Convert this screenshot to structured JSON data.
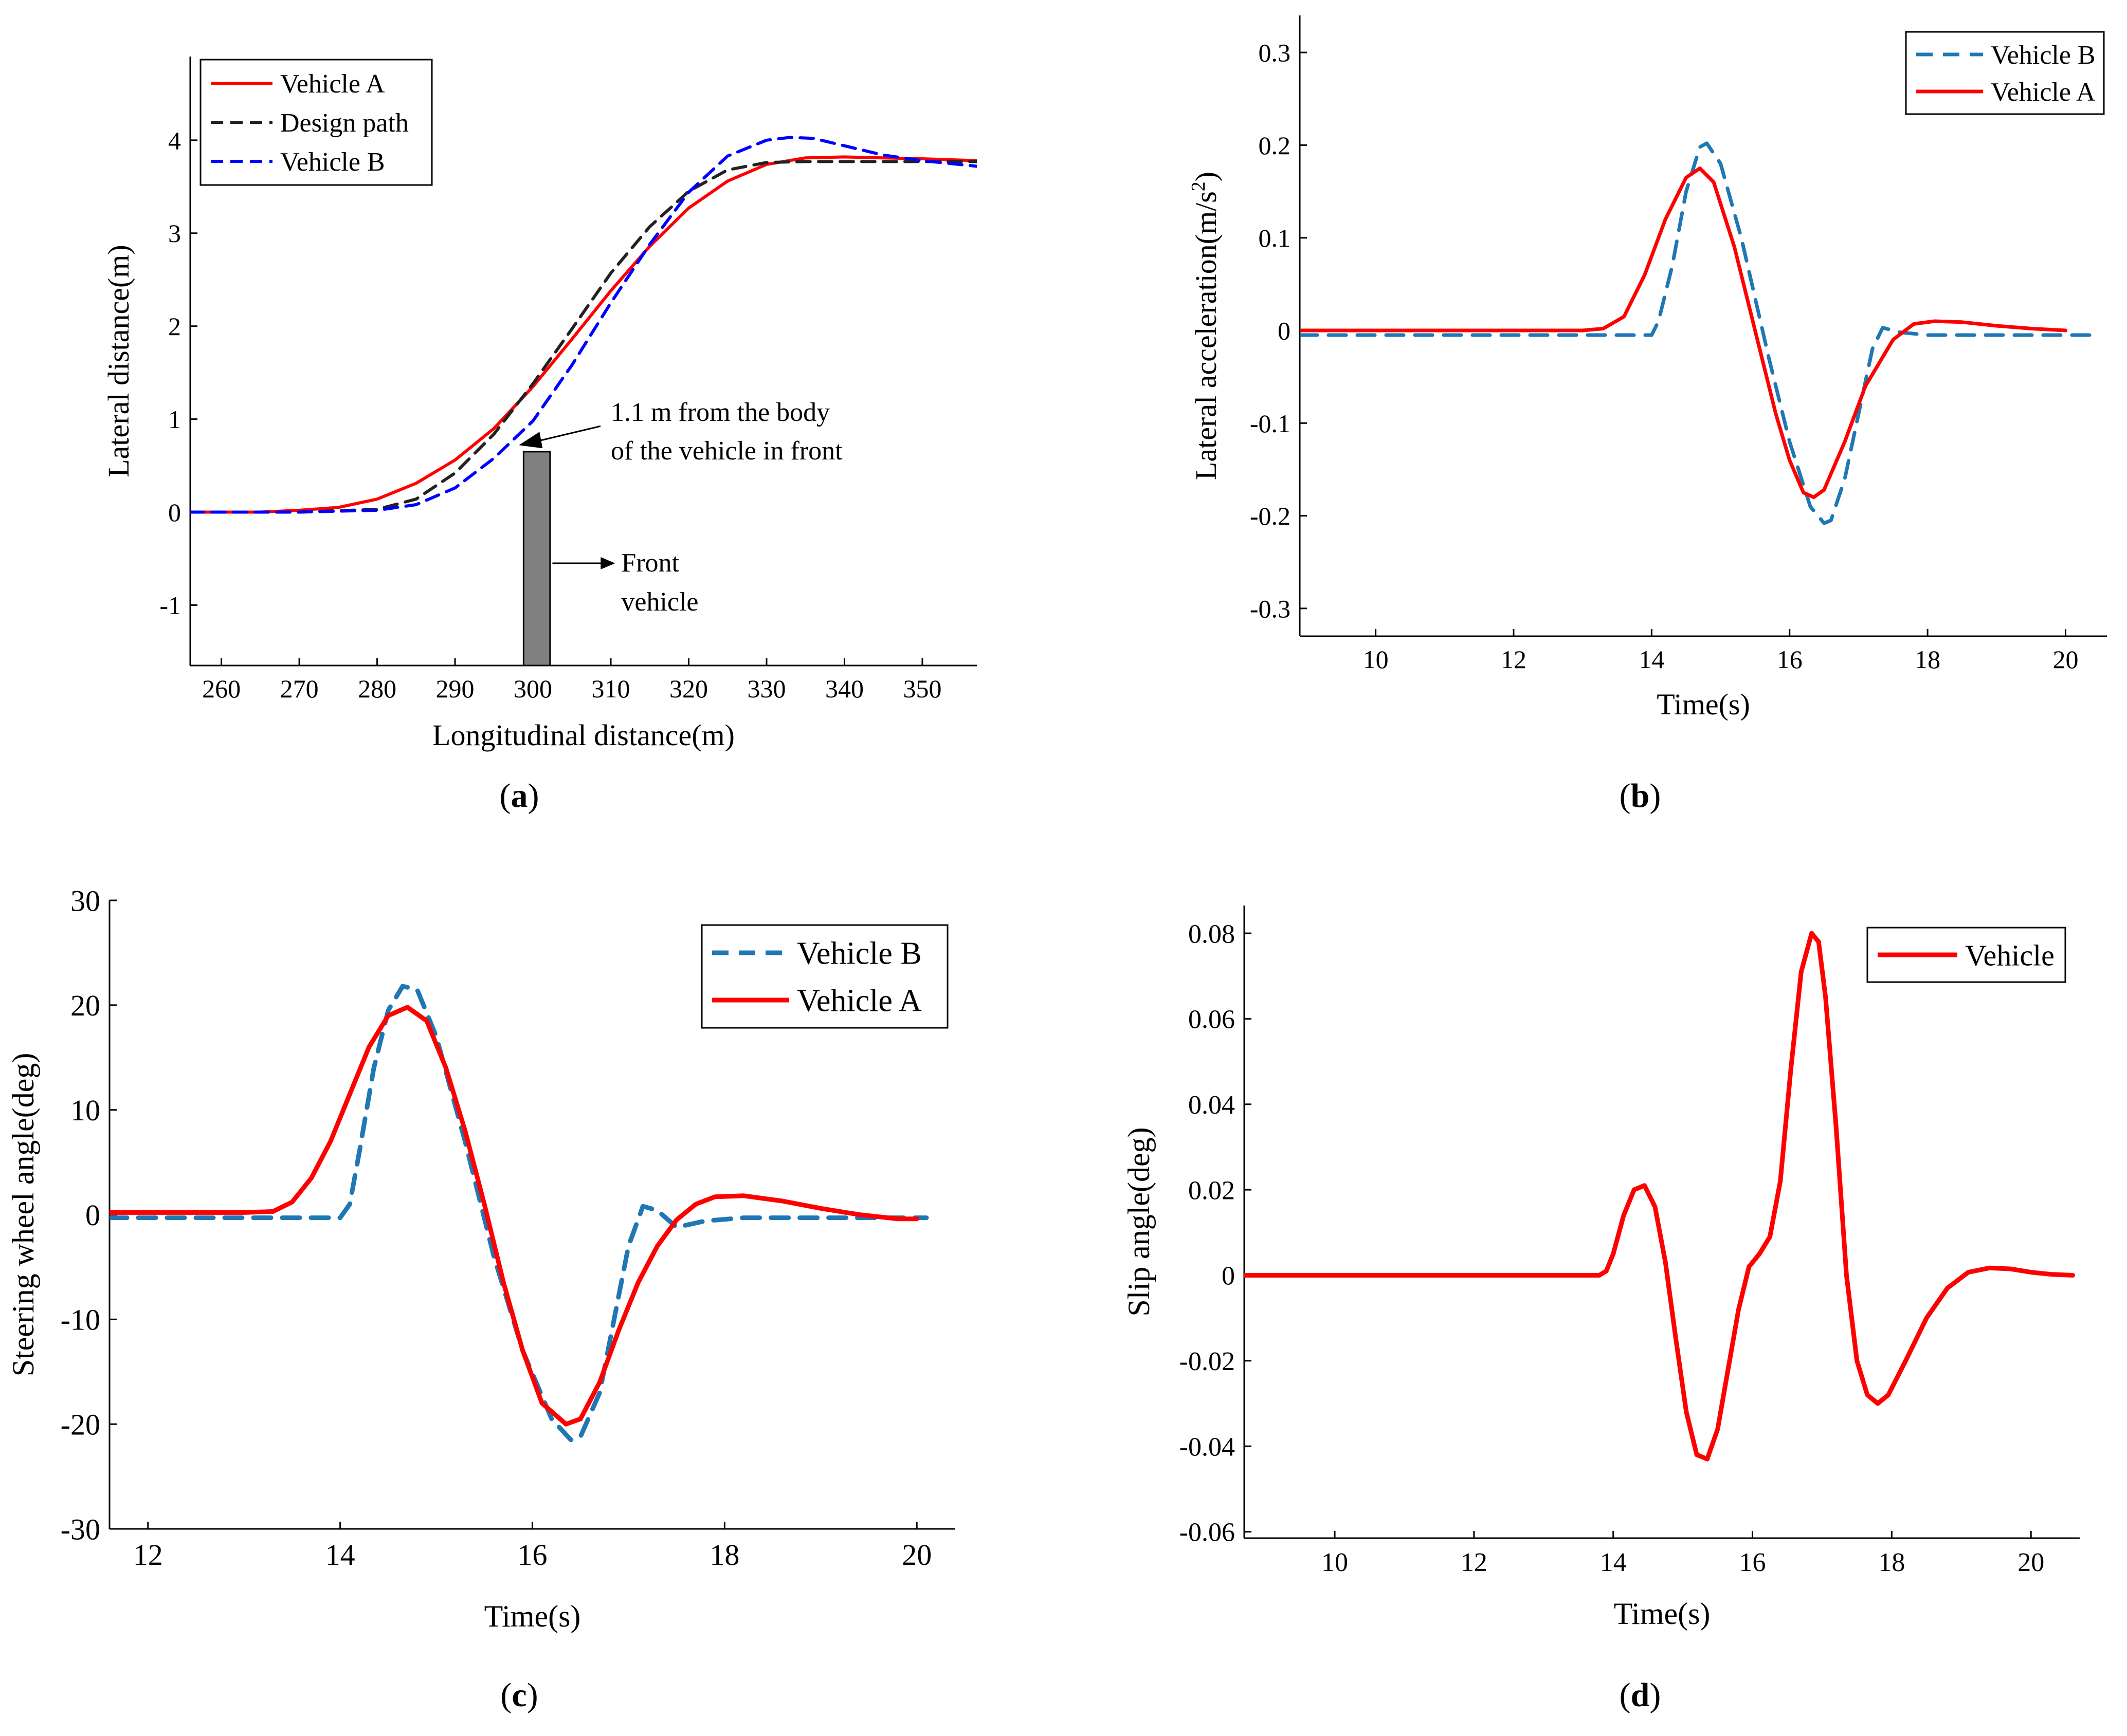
{
  "panels": [
    {
      "caption_letter": "a",
      "chart_data": {
        "type": "line",
        "xlabel": "Longitudinal distance(m)",
        "ylabel": "Lateral distance(m)",
        "xlim": [
          256,
          357
        ],
        "ylim": [
          -1.65,
          4.9
        ],
        "xticks": [
          260,
          270,
          280,
          290,
          300,
          310,
          320,
          330,
          340,
          350
        ],
        "yticks": [
          -1,
          0,
          1,
          2,
          3,
          4
        ],
        "grid": false,
        "legend_position": "top-left",
        "series": [
          {
            "name": "Vehicle A",
            "color": "#ff0000",
            "dash": "solid",
            "x": [
              256,
              265,
              270,
              275,
              280,
              285,
              290,
              295,
              300,
              305,
              310,
              315,
              320,
              325,
              330,
              335,
              340,
              345,
              350,
              357
            ],
            "y": [
              0,
              0,
              0.02,
              0.05,
              0.14,
              0.31,
              0.56,
              0.9,
              1.35,
              1.86,
              2.38,
              2.86,
              3.27,
              3.56,
              3.74,
              3.81,
              3.82,
              3.81,
              3.8,
              3.78
            ]
          },
          {
            "name": "Design path",
            "color": "#222222",
            "dash": "dashed",
            "x": [
              256,
              270,
              280,
              285,
              290,
              295,
              300,
              305,
              310,
              315,
              320,
              325,
              330,
              335,
              340,
              350,
              357
            ],
            "y": [
              0,
              0,
              0.03,
              0.14,
              0.42,
              0.84,
              1.38,
              1.97,
              2.57,
              3.07,
              3.45,
              3.68,
              3.76,
              3.77,
              3.77,
              3.77,
              3.77
            ]
          },
          {
            "name": "Vehicle B",
            "color": "#0000ff",
            "dash": "dashed",
            "x": [
              256,
              270,
              280,
              285,
              290,
              295,
              298,
              300,
              305,
              310,
              315,
              320,
              325,
              330,
              333,
              336,
              340,
              345,
              350,
              357
            ],
            "y": [
              0,
              0,
              0.02,
              0.08,
              0.26,
              0.58,
              0.82,
              0.98,
              1.58,
              2.25,
              2.88,
              3.44,
              3.83,
              4.0,
              4.03,
              4.02,
              3.94,
              3.84,
              3.78,
              3.72
            ]
          }
        ],
        "obstacle": {
          "x_range": [
            298.8,
            302.2
          ],
          "y_range": [
            -1.65,
            0.65
          ],
          "color": "#808080"
        },
        "annotations": [
          {
            "line1": "1.1 m from the body",
            "line2": "of the vehicle in front",
            "point": [
              298.2,
              0.72
            ],
            "text_at": [
              310,
              0.98
            ]
          },
          {
            "line1": "Front",
            "line2": "vehicle",
            "point": [
              302.5,
              -0.55
            ],
            "text_at": [
              312,
              -0.55
            ]
          }
        ]
      }
    },
    {
      "caption_letter": "b",
      "chart_data": {
        "type": "line",
        "xlabel": "Time(s)",
        "ylabel_main": "Lateral acceleration(m/s",
        "ylabel_sup": "2",
        "ylabel_close": ")",
        "xlim": [
          8.9,
          20.6
        ],
        "ylim": [
          -0.33,
          0.34
        ],
        "xticks": [
          10,
          12,
          14,
          16,
          18,
          20
        ],
        "yticks": [
          -0.3,
          -0.2,
          -0.1,
          0,
          0.1,
          0.2,
          0.3
        ],
        "grid": false,
        "legend_position": "top-right",
        "series": [
          {
            "name": "Vehicle B",
            "color": "#1f77b4",
            "dash": "dashed",
            "x": [
              8.9,
              11,
              14.0,
              14.1,
              14.3,
              14.5,
              14.7,
              14.8,
              15.0,
              15.3,
              15.7,
              16.0,
              16.3,
              16.5,
              16.6,
              16.8,
              17.0,
              17.2,
              17.35,
              17.6,
              18,
              19,
              20.5
            ],
            "y": [
              -0.005,
              -0.005,
              -0.005,
              0.01,
              0.07,
              0.15,
              0.198,
              0.202,
              0.18,
              0.1,
              -0.03,
              -0.12,
              -0.19,
              -0.208,
              -0.205,
              -0.16,
              -0.09,
              -0.02,
              0.003,
              -0.002,
              -0.005,
              -0.005,
              -0.005
            ]
          },
          {
            "name": "Vehicle A",
            "color": "#ff0000",
            "dash": "solid",
            "x": [
              8.9,
              11,
              13.0,
              13.3,
              13.6,
              13.9,
              14.2,
              14.5,
              14.7,
              14.9,
              15.2,
              15.5,
              15.8,
              16.0,
              16.2,
              16.35,
              16.5,
              16.8,
              17.1,
              17.5,
              17.8,
              18.1,
              18.5,
              19.0,
              19.5,
              20.0
            ],
            "y": [
              0,
              0,
              0,
              0.002,
              0.015,
              0.06,
              0.12,
              0.165,
              0.175,
              0.16,
              0.09,
              0.0,
              -0.09,
              -0.14,
              -0.175,
              -0.18,
              -0.172,
              -0.12,
              -0.06,
              -0.01,
              0.007,
              0.01,
              0.009,
              0.005,
              0.002,
              0
            ]
          }
        ]
      }
    },
    {
      "caption_letter": "c",
      "chart_data": {
        "type": "line",
        "xlabel": "Time(s)",
        "ylabel": "Steering wheel angle(deg)",
        "xlim": [
          11.6,
          20.4
        ],
        "ylim": [
          -30,
          30
        ],
        "xticks": [
          12,
          14,
          16,
          18,
          20
        ],
        "yticks": [
          -30,
          -20,
          -10,
          0,
          10,
          20,
          30
        ],
        "grid": false,
        "legend_position": "top-right",
        "series": [
          {
            "name": "Vehicle B",
            "color": "#1f77b4",
            "dash": "dashed",
            "x": [
              11.6,
              13,
              14.0,
              14.1,
              14.2,
              14.35,
              14.5,
              14.65,
              14.8,
              15.0,
              15.3,
              15.6,
              15.9,
              16.2,
              16.4,
              16.5,
              16.7,
              16.85,
              17.0,
              17.15,
              17.3,
              17.5,
              17.8,
              18.2,
              19,
              20.1
            ],
            "y": [
              -0.3,
              -0.3,
              -0.3,
              1,
              6,
              14,
              19.5,
              21.8,
              21.5,
              17,
              7,
              -4,
              -13,
              -19.5,
              -21.5,
              -21.2,
              -17,
              -10,
              -3,
              0.8,
              0.4,
              -1.2,
              -0.6,
              -0.3,
              -0.3,
              -0.3
            ]
          },
          {
            "name": "Vehicle A",
            "color": "#ff0000",
            "dash": "solid",
            "x": [
              11.6,
              13,
              13.3,
              13.5,
              13.7,
              13.9,
              14.1,
              14.3,
              14.5,
              14.7,
              14.9,
              15.1,
              15.3,
              15.5,
              15.7,
              15.9,
              16.1,
              16.35,
              16.5,
              16.7,
              16.9,
              17.1,
              17.3,
              17.5,
              17.7,
              17.9,
              18.2,
              18.6,
              19.0,
              19.4,
              19.8,
              20.0
            ],
            "y": [
              0.2,
              0.2,
              0.3,
              1.2,
              3.5,
              7,
              11.5,
              16,
              19,
              19.8,
              18.5,
              14,
              8,
              1,
              -6.5,
              -13,
              -18,
              -20,
              -19.5,
              -16,
              -11,
              -6.5,
              -3,
              -0.5,
              1,
              1.7,
              1.8,
              1.3,
              0.6,
              0,
              -0.4,
              -0.4
            ]
          }
        ]
      }
    },
    {
      "caption_letter": "d",
      "chart_data": {
        "type": "line",
        "xlabel": "Time(s)",
        "ylabel": "Slip angle(deg)",
        "xlim": [
          8.7,
          20.7
        ],
        "ylim": [
          -0.0615,
          0.0865
        ],
        "xticks": [
          10,
          12,
          14,
          16,
          18,
          20
        ],
        "yticks": [
          -0.06,
          -0.04,
          -0.02,
          0,
          0.02,
          0.04,
          0.06,
          0.08
        ],
        "ytick_labels": [
          "-0.06",
          "-0.04",
          "-0.02",
          "0",
          "0.02",
          "0.04",
          "0.06",
          "0.08"
        ],
        "grid": false,
        "legend_position": "top-right",
        "series": [
          {
            "name": "Vehicle",
            "color": "#ff0000",
            "dash": "solid",
            "x": [
              8.7,
              11,
              13.8,
              13.9,
              14.0,
              14.15,
              14.3,
              14.45,
              14.6,
              14.75,
              14.9,
              15.05,
              15.2,
              15.35,
              15.5,
              15.65,
              15.8,
              15.95,
              16.1,
              16.25,
              16.4,
              16.55,
              16.7,
              16.85,
              16.95,
              17.05,
              17.2,
              17.35,
              17.5,
              17.65,
              17.8,
              17.95,
              18.2,
              18.5,
              18.8,
              19.1,
              19.4,
              19.7,
              20.0,
              20.3,
              20.6
            ],
            "y": [
              0,
              0,
              0,
              0.001,
              0.005,
              0.014,
              0.02,
              0.021,
              0.016,
              0.003,
              -0.015,
              -0.032,
              -0.042,
              -0.043,
              -0.036,
              -0.022,
              -0.008,
              0.002,
              0.005,
              0.009,
              0.022,
              0.048,
              0.071,
              0.08,
              0.078,
              0.065,
              0.035,
              0.0,
              -0.02,
              -0.028,
              -0.03,
              -0.028,
              -0.02,
              -0.01,
              -0.003,
              0.0007,
              0.0017,
              0.0015,
              0.0007,
              0.0002,
              0
            ]
          }
        ]
      }
    }
  ]
}
